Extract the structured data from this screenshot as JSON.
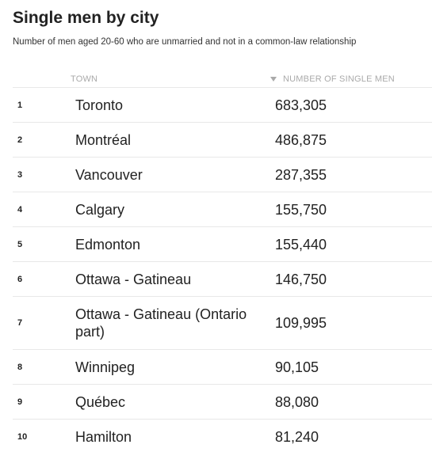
{
  "title": "Single men by city",
  "subtitle": "Number of men aged 20-60 who are unmarried and not in a common-law relationship",
  "table": {
    "columns": {
      "town": "TOWN",
      "number": "NUMBER OF SINGLE MEN",
      "sort_icon": "sort-descending-triangle"
    },
    "rows": [
      {
        "rank": "1",
        "town": "Toronto",
        "number": "683,305"
      },
      {
        "rank": "2",
        "town": "Montréal",
        "number": "486,875"
      },
      {
        "rank": "3",
        "town": "Vancouver",
        "number": "287,355"
      },
      {
        "rank": "4",
        "town": "Calgary",
        "number": "155,750"
      },
      {
        "rank": "5",
        "town": "Edmonton",
        "number": "155,440"
      },
      {
        "rank": "6",
        "town": "Ottawa - Gatineau",
        "number": "146,750"
      },
      {
        "rank": "7",
        "town": "Ottawa - Gatineau (Ontario part)",
        "number": "109,995"
      },
      {
        "rank": "8",
        "town": "Winnipeg",
        "number": "90,105"
      },
      {
        "rank": "9",
        "town": "Québec",
        "number": "88,080"
      },
      {
        "rank": "10",
        "town": "Hamilton",
        "number": "81,240"
      }
    ]
  },
  "colors": {
    "text": "#222222",
    "header_text": "#aaaaaa",
    "divider": "#e8e8e8"
  }
}
